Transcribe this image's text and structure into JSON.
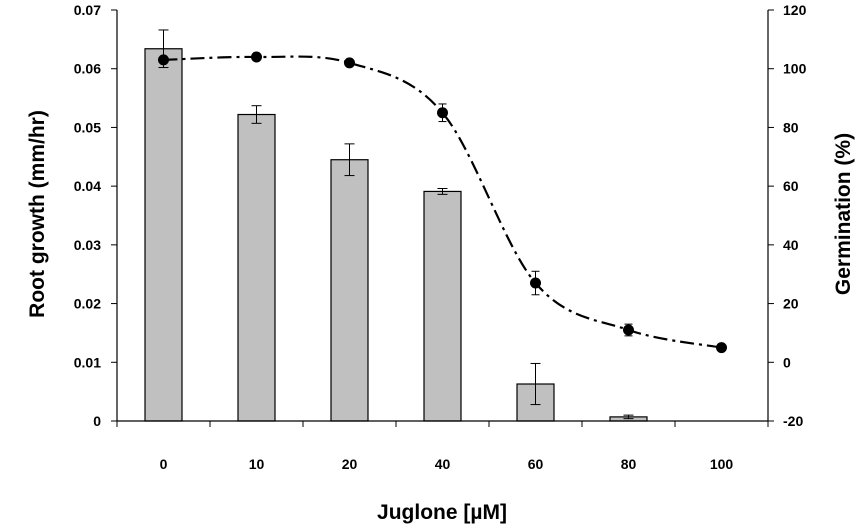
{
  "chart_data": {
    "type": "bar",
    "title": "",
    "xlabel": "Juglone [µM]",
    "ylabel_left": "Root growth (mm/hr)",
    "ylabel_right": "Germination (%)",
    "categories": [
      "0",
      "10",
      "20",
      "40",
      "60",
      "80",
      "100"
    ],
    "ylim_left": [
      0,
      0.07
    ],
    "yticks_left": [
      "0",
      "0.01",
      "0.02",
      "0.03",
      "0.04",
      "0.05",
      "0.06",
      "0.07"
    ],
    "ylim_right": [
      -20,
      120
    ],
    "yticks_right": [
      "-20",
      "0",
      "20",
      "40",
      "60",
      "80",
      "100",
      "120"
    ],
    "grid": false,
    "bars": {
      "axis": "left",
      "color": "#c0c0c0",
      "values": [
        0.0634,
        0.0522,
        0.0445,
        0.0391,
        0.0063,
        0.0007,
        0.0
      ],
      "errors": [
        0.0032,
        0.0015,
        0.0027,
        0.0005,
        0.0035,
        0.0003,
        0.0
      ]
    },
    "line": {
      "axis": "right",
      "style": "dash-dot",
      "marker": "circle",
      "values": [
        103,
        104,
        102,
        85,
        27,
        11,
        5
      ],
      "errors": [
        0,
        0,
        0,
        3,
        4,
        2,
        0
      ]
    }
  }
}
